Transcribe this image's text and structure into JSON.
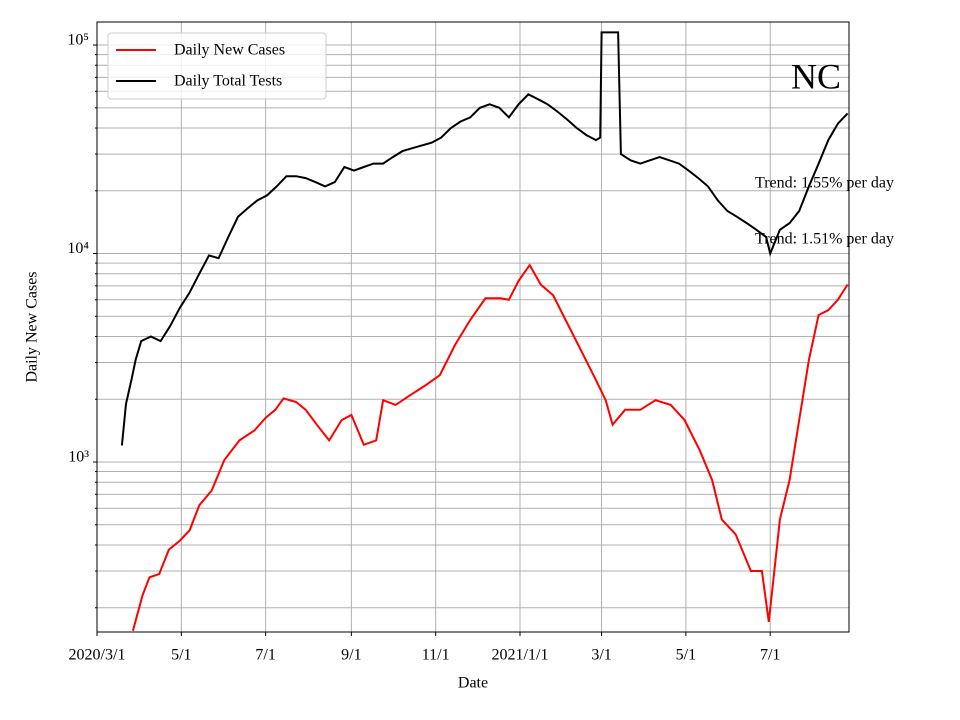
{
  "chart_data": {
    "type": "line",
    "annotations": [
      "NC",
      "Trend: 1.55% per day",
      "Trend: 1.51% per day"
    ],
    "xlabel": "Date",
    "ylabel": "Daily New Cases",
    "log_y": true,
    "grid": true,
    "legend": "upper left",
    "xlim": [
      "2020-03-01",
      "2021-08-27"
    ],
    "xticks": [
      {
        "value": "2020-03-01",
        "label": "2020/3/1"
      },
      {
        "value": "2020-05-01",
        "label": "5/1"
      },
      {
        "value": "2020-07-01",
        "label": "7/1"
      },
      {
        "value": "2020-09-01",
        "label": "9/1"
      },
      {
        "value": "2020-11-01",
        "label": "11/1"
      },
      {
        "value": "2021-01-01",
        "label": "2021/1/1"
      },
      {
        "value": "2021-03-01",
        "label": "3/1"
      },
      {
        "value": "2021-05-01",
        "label": "5/1"
      },
      {
        "value": "2021-07-01",
        "label": "7/1"
      }
    ],
    "ylim": [
      153,
      129000
    ],
    "yticks": [
      {
        "value": 1000,
        "label": "10³"
      },
      {
        "value": 10000,
        "label": "10⁴"
      },
      {
        "value": 100000,
        "label": "10⁵"
      }
    ],
    "yticks_minor": [
      200,
      300,
      400,
      500,
      600,
      700,
      800,
      900,
      2000,
      3000,
      4000,
      5000,
      6000,
      7000,
      8000,
      9000,
      20000,
      30000,
      40000,
      50000,
      60000,
      70000,
      80000,
      90000
    ],
    "series": [
      {
        "name": "Daily New Cases",
        "color": "#ff0000",
        "x": [
          "2020-03-27",
          "2020-04-03",
          "2020-04-08",
          "2020-04-15",
          "2020-04-22",
          "2020-04-30",
          "2020-05-07",
          "2020-05-14",
          "2020-05-23",
          "2020-06-01",
          "2020-06-12",
          "2020-06-23",
          "2020-07-01",
          "2020-07-08",
          "2020-07-14",
          "2020-07-23",
          "2020-07-30",
          "2020-08-07",
          "2020-08-16",
          "2020-08-25",
          "2020-09-01",
          "2020-09-10",
          "2020-09-19",
          "2020-09-24",
          "2020-10-03",
          "2020-10-14",
          "2020-10-25",
          "2020-11-04",
          "2020-11-15",
          "2020-11-26",
          "2020-12-07",
          "2020-12-18",
          "2020-12-24",
          "2020-12-31",
          "2021-01-08",
          "2021-01-16",
          "2021-01-25",
          "2021-02-03",
          "2021-02-14",
          "2021-02-25",
          "2021-03-04",
          "2021-03-09",
          "2021-03-18",
          "2021-03-29",
          "2021-04-09",
          "2021-04-20",
          "2021-04-30",
          "2021-05-11",
          "2021-05-20",
          "2021-05-27",
          "2021-06-06",
          "2021-06-17",
          "2021-06-25",
          "2021-06-30",
          "2021-07-08",
          "2021-07-15",
          "2021-07-22",
          "2021-07-29",
          "2021-08-05",
          "2021-08-12",
          "2021-08-19",
          "2021-08-26"
        ],
        "values": [
          155,
          230,
          280,
          290,
          380,
          420,
          470,
          620,
          730,
          1020,
          1270,
          1420,
          1630,
          1780,
          2020,
          1940,
          1780,
          1510,
          1270,
          1590,
          1680,
          1210,
          1270,
          1980,
          1880,
          2100,
          2340,
          2610,
          3640,
          4800,
          6100,
          6100,
          6000,
          7400,
          8800,
          7100,
          6300,
          4800,
          3450,
          2470,
          1980,
          1510,
          1780,
          1780,
          1980,
          1880,
          1590,
          1140,
          820,
          530,
          450,
          300,
          300,
          171,
          530,
          820,
          1590,
          3090,
          5070,
          5350,
          6000,
          7100
        ]
      },
      {
        "name": "Daily Total Tests",
        "color": "#000000",
        "x": [
          "2020-03-19",
          "2020-03-22",
          "2020-03-26",
          "2020-03-29",
          "2020-04-02",
          "2020-04-09",
          "2020-04-16",
          "2020-04-23",
          "2020-04-30",
          "2020-05-07",
          "2020-05-14",
          "2020-05-21",
          "2020-05-28",
          "2020-06-04",
          "2020-06-11",
          "2020-06-18",
          "2020-06-25",
          "2020-07-02",
          "2020-07-09",
          "2020-07-16",
          "2020-07-23",
          "2020-07-30",
          "2020-08-06",
          "2020-08-13",
          "2020-08-20",
          "2020-08-27",
          "2020-09-03",
          "2020-09-10",
          "2020-09-17",
          "2020-09-24",
          "2020-10-01",
          "2020-10-08",
          "2020-10-15",
          "2020-10-22",
          "2020-10-29",
          "2020-11-05",
          "2020-11-12",
          "2020-11-19",
          "2020-11-26",
          "2020-12-03",
          "2020-12-10",
          "2020-12-17",
          "2020-12-24",
          "2020-12-31",
          "2021-01-07",
          "2021-01-14",
          "2021-01-21",
          "2021-01-28",
          "2021-02-04",
          "2021-02-11",
          "2021-02-18",
          "2021-02-25",
          "2021-02-28",
          "2021-03-01",
          "2021-03-08",
          "2021-03-13",
          "2021-03-15",
          "2021-03-22",
          "2021-03-29",
          "2021-04-05",
          "2021-04-12",
          "2021-04-19",
          "2021-04-26",
          "2021-05-03",
          "2021-05-10",
          "2021-05-17",
          "2021-05-24",
          "2021-05-31",
          "2021-06-07",
          "2021-06-14",
          "2021-06-21",
          "2021-06-28",
          "2021-07-01",
          "2021-07-08",
          "2021-07-15",
          "2021-07-22",
          "2021-07-29",
          "2021-08-05",
          "2021-08-12",
          "2021-08-19",
          "2021-08-26"
        ],
        "values": [
          1200,
          1900,
          2500,
          3100,
          3800,
          4000,
          3800,
          4500,
          5500,
          6500,
          8000,
          9800,
          9500,
          12000,
          15000,
          16500,
          18000,
          19000,
          21000,
          23500,
          23500,
          23000,
          22000,
          21000,
          22000,
          26000,
          25000,
          26000,
          27000,
          27000,
          29000,
          31000,
          32000,
          33000,
          34000,
          36000,
          40000,
          43000,
          45000,
          50000,
          52000,
          50000,
          45000,
          52000,
          58000,
          55000,
          52000,
          48000,
          44000,
          40000,
          37000,
          35000,
          36000,
          115000,
          115000,
          115000,
          30000,
          28000,
          27000,
          28000,
          29000,
          28000,
          27000,
          25000,
          23000,
          21000,
          18000,
          16000,
          15000,
          14000,
          13000,
          12000,
          10000,
          13000,
          14000,
          16000,
          21000,
          27000,
          35000,
          42000,
          47000
        ]
      }
    ]
  }
}
